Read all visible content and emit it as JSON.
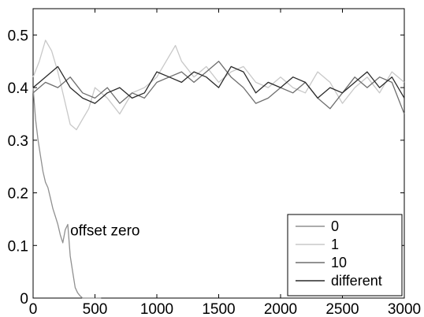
{
  "chart_data": {
    "type": "line",
    "title": "",
    "xlabel": "",
    "ylabel": "",
    "xlim": [
      0,
      3000
    ],
    "ylim": [
      0,
      0.55
    ],
    "x_ticks": [
      0,
      500,
      1000,
      1500,
      2000,
      2500,
      3000
    ],
    "x_tick_labels": [
      "0",
      "500",
      "1000",
      "1500",
      "2000",
      "2500",
      "3000"
    ],
    "y_ticks": [
      0,
      0.1,
      0.2,
      0.3,
      0.4,
      0.5
    ],
    "y_tick_labels": [
      "0",
      "0.1",
      "0.2",
      "0.3",
      "0.4",
      "0.5"
    ],
    "grid": false,
    "legend_position": "bottom-right",
    "annotations": [
      {
        "text": "offset zero",
        "x": 300,
        "y": 0.13
      }
    ],
    "series": [
      {
        "name": "0",
        "color": "#909090",
        "x": [
          0,
          20,
          40,
          60,
          80,
          100,
          120,
          140,
          160,
          180,
          200,
          220,
          240,
          260,
          280,
          300,
          320,
          340,
          360,
          380,
          400,
          420,
          450,
          500,
          550
        ],
        "y": [
          0.4,
          0.34,
          0.3,
          0.27,
          0.24,
          0.22,
          0.21,
          0.19,
          0.17,
          0.155,
          0.14,
          0.12,
          0.105,
          0.13,
          0.14,
          0.08,
          0.05,
          0.02,
          0.01,
          0.004,
          0.0,
          0.0,
          0.0,
          0.0,
          0.0
        ]
      },
      {
        "name": "1",
        "color": "#c8c8c8",
        "x": [
          0,
          50,
          100,
          150,
          200,
          250,
          300,
          350,
          400,
          450,
          500,
          600,
          700,
          800,
          900,
          1000,
          1100,
          1150,
          1200,
          1300,
          1400,
          1500,
          1600,
          1700,
          1800,
          1900,
          2000,
          2100,
          2200,
          2300,
          2400,
          2500,
          2600,
          2700,
          2800,
          2900,
          3000
        ],
        "y": [
          0.42,
          0.45,
          0.49,
          0.47,
          0.43,
          0.38,
          0.33,
          0.32,
          0.34,
          0.36,
          0.4,
          0.38,
          0.35,
          0.39,
          0.4,
          0.42,
          0.46,
          0.48,
          0.45,
          0.42,
          0.44,
          0.41,
          0.43,
          0.44,
          0.41,
          0.4,
          0.42,
          0.4,
          0.39,
          0.43,
          0.41,
          0.37,
          0.4,
          0.42,
          0.39,
          0.43,
          0.41
        ]
      },
      {
        "name": "10",
        "color": "#6e6e6e",
        "x": [
          0,
          100,
          200,
          300,
          400,
          500,
          600,
          700,
          800,
          900,
          1000,
          1100,
          1200,
          1300,
          1400,
          1500,
          1600,
          1700,
          1800,
          1900,
          2000,
          2100,
          2200,
          2300,
          2400,
          2500,
          2600,
          2700,
          2800,
          2900,
          3000
        ],
        "y": [
          0.39,
          0.41,
          0.4,
          0.42,
          0.39,
          0.38,
          0.4,
          0.37,
          0.39,
          0.38,
          0.41,
          0.42,
          0.43,
          0.41,
          0.43,
          0.45,
          0.42,
          0.4,
          0.37,
          0.38,
          0.4,
          0.39,
          0.41,
          0.38,
          0.36,
          0.39,
          0.42,
          0.4,
          0.42,
          0.41,
          0.35
        ]
      },
      {
        "name": "different",
        "color": "#2a2a2a",
        "x": [
          0,
          100,
          200,
          300,
          400,
          500,
          600,
          700,
          800,
          900,
          1000,
          1100,
          1200,
          1300,
          1400,
          1500,
          1600,
          1700,
          1800,
          1900,
          2000,
          2100,
          2200,
          2300,
          2400,
          2500,
          2600,
          2700,
          2800,
          2900,
          3000
        ],
        "y": [
          0.4,
          0.42,
          0.44,
          0.4,
          0.38,
          0.37,
          0.39,
          0.4,
          0.38,
          0.39,
          0.43,
          0.42,
          0.41,
          0.43,
          0.42,
          0.4,
          0.44,
          0.43,
          0.39,
          0.41,
          0.4,
          0.42,
          0.41,
          0.38,
          0.4,
          0.39,
          0.41,
          0.43,
          0.4,
          0.42,
          0.38
        ]
      }
    ]
  }
}
